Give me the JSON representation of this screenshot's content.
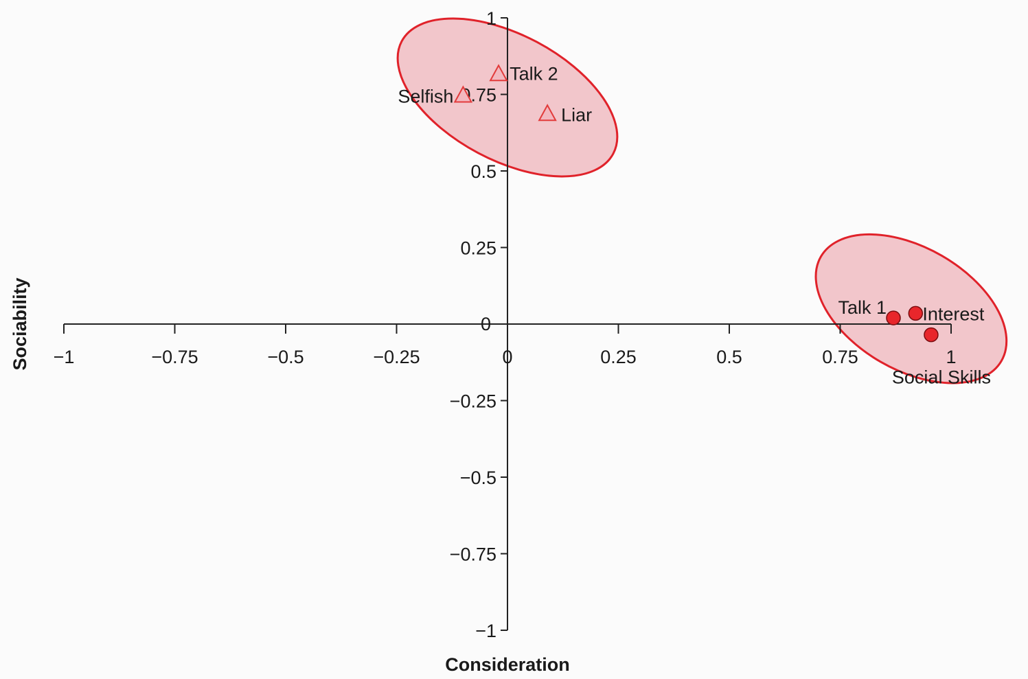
{
  "chart_data": {
    "type": "scatter",
    "title": "",
    "xlabel": "Consideration",
    "ylabel": "Sociability",
    "xlim": [
      -1,
      1
    ],
    "ylim": [
      -1,
      1
    ],
    "x_ticks": [
      "−1",
      "−0.75",
      "−0.5",
      "−0.25",
      "0",
      "0.25",
      "0.5",
      "0.75",
      "1"
    ],
    "x_tick_values": [
      -1,
      -0.75,
      -0.5,
      -0.25,
      0,
      0.25,
      0.5,
      0.75,
      1
    ],
    "y_ticks": [
      "1",
      "0.75",
      "0.5",
      "0.25",
      "0",
      "−0.25",
      "−0.5",
      "−0.75",
      "−1"
    ],
    "y_tick_values": [
      1,
      0.75,
      0.5,
      0.25,
      0,
      -0.25,
      -0.5,
      -0.75,
      -1
    ],
    "grid": false,
    "axes_cross_at_origin": true,
    "series": [
      {
        "marker": "triangle",
        "color": "#e23b3b",
        "fill": "#f2b8bf",
        "points": [
          {
            "label": "Talk 2",
            "x": -0.02,
            "y": 0.82
          },
          {
            "label": "Selfish",
            "x": -0.1,
            "y": 0.75
          },
          {
            "label": "Liar",
            "x": 0.09,
            "y": 0.69
          }
        ]
      },
      {
        "marker": "circle",
        "color": "#e8262b",
        "points": [
          {
            "label": "Talk 1",
            "x": 0.87,
            "y": 0.02
          },
          {
            "label": "Interest",
            "x": 0.92,
            "y": 0.035
          },
          {
            "label": "Social Skills",
            "x": 0.955,
            "y": -0.035
          }
        ]
      }
    ],
    "clusters": [
      {
        "center_x": 0.0,
        "center_y": 0.74,
        "rx": 0.27,
        "ry": 0.205,
        "rotation_deg": 28
      },
      {
        "center_x": 0.91,
        "center_y": 0.05,
        "rx": 0.235,
        "ry": 0.2,
        "rotation_deg": 30
      }
    ],
    "ellipse_stroke": "#e0222a",
    "ellipse_fill": "#f0bcc2"
  }
}
